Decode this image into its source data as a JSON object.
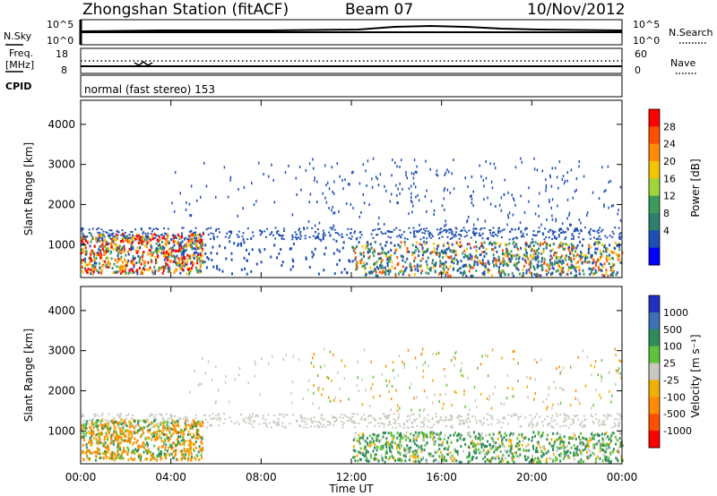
{
  "header": {
    "station": "Zhongshan Station (fitACF)",
    "beam": "Beam 07",
    "date": "10/Nov/2012"
  },
  "top_strip": {
    "left_label": "N.Sky",
    "right_label": "N.Search",
    "y_ticks_left": [
      "10^5",
      "10^0"
    ],
    "y_ticks_right": [
      "10^5",
      "10^0"
    ]
  },
  "freq_strip": {
    "left_label_1": "Freq.",
    "left_label_2": "[MHz]",
    "right_label": "Nave",
    "y_ticks_left": [
      "18",
      "8"
    ],
    "y_ticks_right": [
      "60",
      "0"
    ]
  },
  "cpid": {
    "label": "CPID",
    "text": "normal (fast stereo) 153"
  },
  "chart_data": [
    {
      "type": "heatmap",
      "name_on_chart": "Power",
      "ylabel": "Slant Range [km]",
      "ylim": [
        180,
        4600
      ],
      "y_ticks": [
        1000,
        2000,
        3000,
        4000
      ],
      "xlabel": "Time UT",
      "xlim": [
        0,
        24
      ],
      "x_ticks": [
        "00:00",
        "04:00",
        "08:00",
        "12:00",
        "16:00",
        "20:00",
        "00:00"
      ],
      "colorbar": {
        "label": "Power [dB]",
        "ticks": [
          "28",
          "24",
          "20",
          "16",
          "12",
          "8",
          "4"
        ],
        "colors": [
          "#ff0000",
          "#ff5000",
          "#ff8c00",
          "#f5c400",
          "#a0d43a",
          "#3c9a5a",
          "#2f7f6f",
          "#1e4fb4",
          "#0000ff"
        ]
      }
    },
    {
      "type": "heatmap",
      "name_on_chart": "Velocity",
      "ylabel": "Slant Range [km]",
      "ylim": [
        180,
        4600
      ],
      "y_ticks": [
        1000,
        2000,
        3000,
        4000
      ],
      "xlabel": "Time UT",
      "xlim": [
        0,
        24
      ],
      "x_ticks": [
        "00:00",
        "04:00",
        "08:00",
        "12:00",
        "16:00",
        "20:00",
        "00:00"
      ],
      "colorbar": {
        "label": "Velocity [m s⁻¹]",
        "ticks": [
          "1000",
          "500",
          "100",
          "25",
          "-25",
          "-100",
          "-500",
          "-1000"
        ],
        "colors": [
          "#2030c0",
          "#3c6fb4",
          "#2f8c5a",
          "#5ec23a",
          "#c8c8c0",
          "#f0b000",
          "#ff8c00",
          "#ff5000",
          "#ff0000"
        ]
      }
    }
  ]
}
